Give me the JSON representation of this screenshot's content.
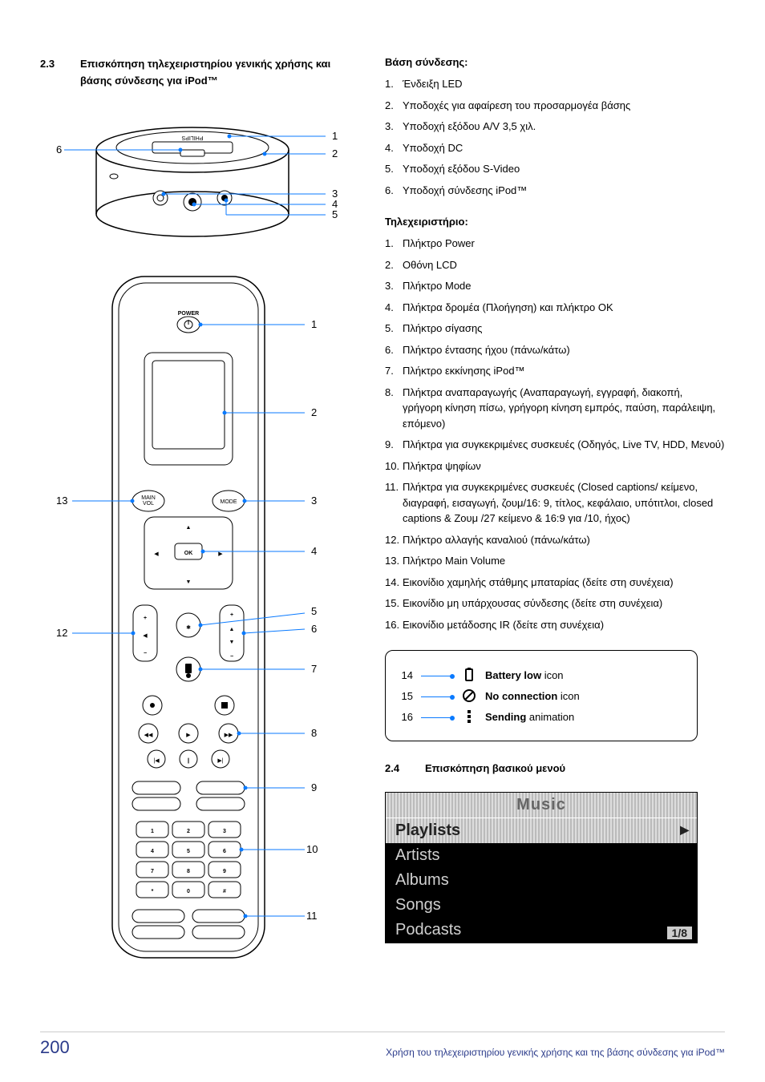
{
  "section_23": {
    "number": "2.3",
    "title": "Επισκόπηση τηλεχειριστηρίου γενικής χρήσης και βάσης σύνδεσης για iPod™"
  },
  "dock": {
    "heading": "Βάση σύνδεσης:",
    "items": [
      "Ένδειξη LED",
      "Υποδοχές για αφαίρεση του προσαρμογέα βάσης",
      "Υποδοχή εξόδου A/V 3,5 χιλ.",
      "Υποδοχή DC",
      "Υποδοχή εξόδου S-Video",
      "Υποδοχή σύνδεσης iPod™"
    ],
    "callout_color": "#0a7aff",
    "brand_text": "PHILIPS"
  },
  "remote": {
    "heading": "Τηλεχειριστήριο:",
    "items": [
      "Πλήκτρο Power",
      "Οθόνη LCD",
      "Πλήκτρο Mode",
      "Πλήκτρα δρομέα (Πλοήγηση) και πλήκτρο OK",
      "Πλήκτρο σίγασης",
      "Πλήκτρο έντασης ήχου (πάνω/κάτω)",
      "Πλήκτρο εκκίνησης iPod™",
      "Πλήκτρα αναπαραγωγής (Αναπαραγωγή, εγγραφή, διακοπή, γρήγορη κίνηση πίσω, γρήγορη κίνηση εμπρός, παύση, παράλειψη, επόμενο)",
      "Πλήκτρα για συγκεκριμένες συσκευές (Οδηγός, Live TV, HDD, Μενού)",
      "Πλήκτρα ψηφίων",
      "Πλήκτρα για συγκεκριμένες συσκευές (Closed captions/ κείμενο, διαγραφή, εισαγωγή, ζουμ/16: 9, τίτλος, κεφάλαιο, υπότιτλοι, closed captions & Ζουμ /27 κείμενο & 16:9 για /10, ήχος)",
      "Πλήκτρο αλλαγής καναλιού (πάνω/κάτω)",
      "Πλήκτρο Main Volume",
      "Εικονίδιο χαμηλής στάθμης μπαταρίας (δείτε στη συνέχεια)",
      "Εικονίδιο μη υπάρχουσας σύνδεσης (δείτε στη συνέχεια)",
      "Εικονίδιο μετάδοσης IR (δείτε στη συνέχεια)"
    ],
    "labels": {
      "power": "POWER",
      "main_vol": "MAIN\nVOL",
      "mode": "MODE",
      "ok": "OK",
      "keypad": [
        "1",
        "2",
        "3",
        "4",
        "5",
        "6",
        "7",
        "8",
        "9",
        "*",
        "0",
        "#"
      ]
    }
  },
  "icons": {
    "rows": [
      {
        "n": "14",
        "bold": "Battery low",
        "rest": " icon"
      },
      {
        "n": "15",
        "bold": "No connection",
        "rest": " icon"
      },
      {
        "n": "16",
        "bold": "Sending",
        "rest": " animation"
      }
    ]
  },
  "section_24": {
    "number": "2.4",
    "title": "Επισκόπηση βασικού μενού"
  },
  "menu": {
    "title": "Music",
    "items": [
      "Playlists",
      "Artists",
      "Albums",
      "Songs",
      "Podcasts"
    ],
    "selected_index": 0,
    "counter": "1/8",
    "bg": "#000000",
    "fg": "#d0d0d0"
  },
  "footer": {
    "page": "200",
    "text": "Χρήση του τηλεχειριστηρίου γενικής χρήσης και της βάσης σύνδεσης για iPod™",
    "color": "#2a3a8a"
  }
}
